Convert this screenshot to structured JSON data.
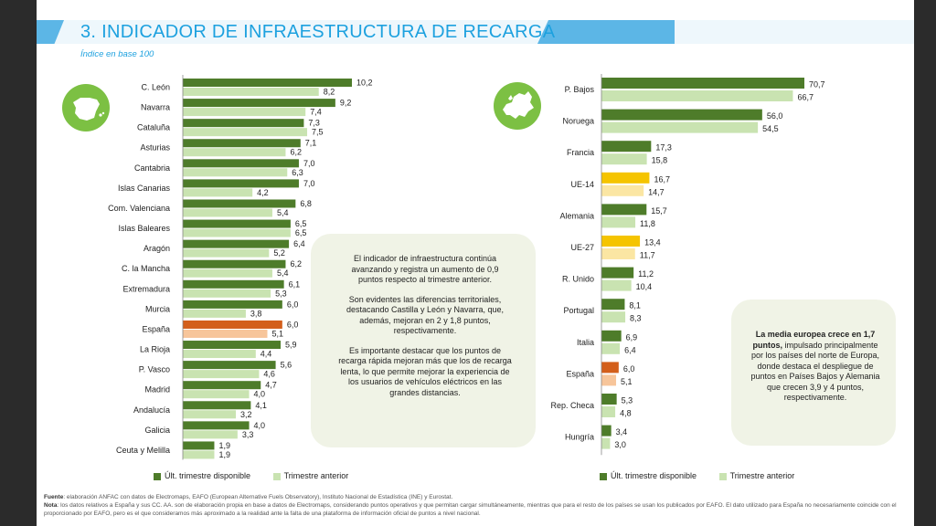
{
  "header": {
    "title": "3. INDICADOR DE INFRAESTRUCTURA DE RECARGA",
    "subtitle": "Índice en base 100"
  },
  "colors": {
    "current": "#4e7c2a",
    "previous": "#c9e3b1",
    "spain_current": "#d35f1b",
    "spain_previous": "#f7c59a",
    "eu_current": "#f5c400",
    "eu_previous": "#fbe6a3",
    "accent": "#1da1df"
  },
  "icons": {
    "left": "spain-map-icon",
    "right": "europe-map-icon"
  },
  "chart_data": [
    {
      "type": "bar",
      "orientation": "horizontal",
      "categories": [
        "C. León",
        "Navarra",
        "Cataluña",
        "Asturias",
        "Cantabria",
        "Islas Canarias",
        "Com. Valenciana",
        "Islas Baleares",
        "Aragón",
        "C. la Mancha",
        "Extremadura",
        "Murcia",
        "España",
        "La Rioja",
        "P. Vasco",
        "Madrid",
        "Andalucía",
        "Galicia",
        "Ceuta y Melilla"
      ],
      "series": [
        {
          "name": "Últ. trimestre disponible",
          "values": [
            10.2,
            9.2,
            7.3,
            7.1,
            7.0,
            7.0,
            6.8,
            6.5,
            6.4,
            6.2,
            6.1,
            6.0,
            6.0,
            5.9,
            5.6,
            4.7,
            4.1,
            4.0,
            1.9
          ],
          "labels": [
            "10,2",
            "9,2",
            "7,3",
            "7,1",
            "7,0",
            "7,0",
            "6,8",
            "6,5",
            "6,4",
            "6,2",
            "6,1",
            "6,0",
            "6,0",
            "5,9",
            "5,6",
            "4,7",
            "4,1",
            "4,0",
            "1,9"
          ]
        },
        {
          "name": "Trimestre anterior",
          "values": [
            8.2,
            7.4,
            7.5,
            6.2,
            6.3,
            4.2,
            5.4,
            6.5,
            5.2,
            5.4,
            5.3,
            3.8,
            5.1,
            4.4,
            4.6,
            4.0,
            3.2,
            3.3,
            1.9
          ],
          "labels": [
            "8,2",
            "7,4",
            "7,5",
            "6,2",
            "6,3",
            "4,2",
            "5,4",
            "6,5",
            "5,2",
            "5,4",
            "5,3",
            "3,8",
            "5,1",
            "4,4",
            "4,6",
            "4,0",
            "3,2",
            "3,3",
            "1,9"
          ]
        }
      ],
      "highlight": {
        "España": "spain"
      },
      "xlim": [
        0,
        10.2
      ]
    },
    {
      "type": "bar",
      "orientation": "horizontal",
      "categories": [
        "P. Bajos",
        "Noruega",
        "Francia",
        "UE-14",
        "Alemania",
        "UE-27",
        "R. Unido",
        "Portugal",
        "Italia",
        "España",
        "Rep. Checa",
        "Hungría"
      ],
      "series": [
        {
          "name": "Últ. trimestre disponible",
          "values": [
            70.7,
            56.0,
            17.3,
            16.7,
            15.7,
            13.4,
            11.2,
            8.1,
            6.9,
            6.0,
            5.3,
            3.4
          ],
          "labels": [
            "70,7",
            "56,0",
            "17,3",
            "16,7",
            "15,7",
            "13,4",
            "11,2",
            "8,1",
            "6,9",
            "6,0",
            "5,3",
            "3,4"
          ]
        },
        {
          "name": "Trimestre anterior",
          "values": [
            66.7,
            54.5,
            15.8,
            14.7,
            11.8,
            11.7,
            10.4,
            8.3,
            6.4,
            5.1,
            4.8,
            3.0
          ],
          "labels": [
            "66,7",
            "54,5",
            "15,8",
            "14,7",
            "11,8",
            "11,7",
            "10,4",
            "8,3",
            "6,4",
            "5,1",
            "4,8",
            "3,0"
          ]
        }
      ],
      "highlight": {
        "España": "spain",
        "UE-14": "eu",
        "UE-27": "eu"
      },
      "xlim": [
        0,
        70.7
      ]
    }
  ],
  "left_text": {
    "p1": "El indicador de infraestructura continúa avanzando y registra un aumento de 0,9 puntos respecto al trimestre anterior.",
    "p2": "Son evidentes las diferencias territoriales, destacando Castilla y León y Navarra, que, además, mejoran en 2 y 1,8 puntos, respectivamente.",
    "p3": "Es importante destacar que los puntos de recarga rápida mejoran más que los de recarga lenta, lo que permite mejorar la experiencia de los usuarios de vehículos eléctricos en las grandes distancias."
  },
  "right_text": {
    "bold": "La media europea crece en 1,7 puntos,",
    "rest": " impulsado principalmente por los países del norte de Europa, donde destaca el despliegue de puntos en Países Bajos y Alemania que crecen 3,9 y 4 puntos, respectivamente."
  },
  "legend": {
    "current": "Últ. trimestre disponible",
    "previous": "Trimestre anterior"
  },
  "footnote": {
    "source_label": "Fuente",
    "source_text": ": elaboración ANFAC con datos de Electromaps, EAFO (European Alternative Fuels Observatory), Instituto Nacional de Estadística (INE) y Eurostat.",
    "note_label": "Nota",
    "note_text": ": los datos relativos a España y sus CC. AA. son de elaboración propia en base a datos de Electromaps, considerando puntos operativos y que permitan cargar simultáneamente, mientras que para el resto de los países se usan los publicados por EAFO. El dato utilizado para España no necesariamente coincide con el proporcionado por EAFO, pero es el que consideramos más aproximado a la realidad ante la falta de una plataforma de información oficial de puntos a nivel nacional."
  }
}
